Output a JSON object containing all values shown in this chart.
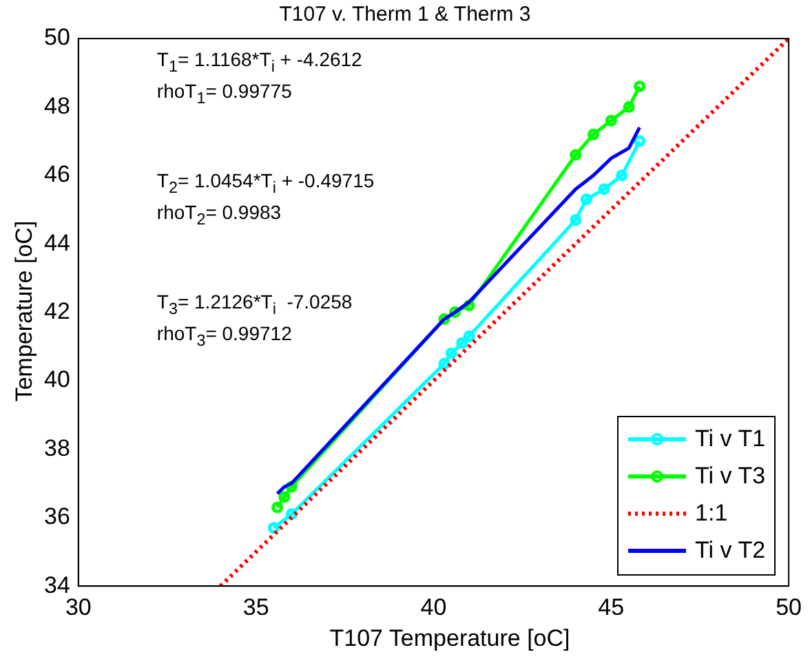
{
  "chart_data": {
    "type": "line",
    "title": "T107 v. Therm 1 & Therm 3",
    "xlabel": "T107 Temperature [oC]",
    "ylabel": "Temperature [oC]",
    "xlim": [
      30,
      50
    ],
    "xticks": [
      30,
      35,
      40,
      45,
      50
    ],
    "ylim": [
      34,
      50
    ],
    "yticks": [
      34,
      36,
      38,
      40,
      42,
      44,
      46,
      48,
      50
    ],
    "grid": false,
    "legend": "bottom right",
    "series": [
      {
        "name": "Ti v T1",
        "color": "#00ffff",
        "marker": "circle",
        "line_style": "solid",
        "x": [
          35.5,
          36.0,
          40.3,
          40.5,
          40.8,
          41.0,
          44.0,
          44.3,
          44.8,
          45.3,
          45.8
        ],
        "values": [
          35.7,
          36.1,
          40.5,
          40.8,
          41.1,
          41.3,
          44.7,
          45.3,
          45.6,
          46.0,
          47.0
        ]
      },
      {
        "name": "Ti v T3",
        "color": "#00ff00",
        "marker": "circle",
        "line_style": "solid",
        "x": [
          35.6,
          35.8,
          36.0,
          40.3,
          40.6,
          41.0,
          44.0,
          44.5,
          45.0,
          45.5,
          45.8
        ],
        "values": [
          36.3,
          36.6,
          36.9,
          41.8,
          42.0,
          42.2,
          46.6,
          47.2,
          47.6,
          48.0,
          48.6
        ]
      },
      {
        "name": "1:1",
        "color": "#ff0000",
        "marker": "none",
        "line_style": "dotted",
        "x": [
          34,
          50
        ],
        "values": [
          34,
          50
        ]
      },
      {
        "name": "Ti v T2",
        "color": "#0000ff",
        "marker": "none",
        "line_style": "solid",
        "x": [
          35.6,
          35.8,
          36.0,
          40.3,
          40.6,
          41.0,
          44.0,
          44.5,
          45.0,
          45.5,
          45.8
        ],
        "values": [
          36.7,
          36.9,
          37.0,
          41.8,
          42.0,
          42.3,
          45.6,
          46.0,
          46.5,
          46.8,
          47.4
        ]
      }
    ],
    "annotations": [
      "T$_{1}$= 1.1168*T$_{i}$ + -4.2612",
      "rhoT$_{1}$= 0.99775",
      "T$_{2}$= 1.0454*T$_{i}$ + -0.49715",
      "rhoT$_{2}$= 0.9983",
      "T$_{3}$= 1.2126*T$_{i}$  -7.0258",
      "rhoT$_{3}$= 0.99712"
    ]
  }
}
